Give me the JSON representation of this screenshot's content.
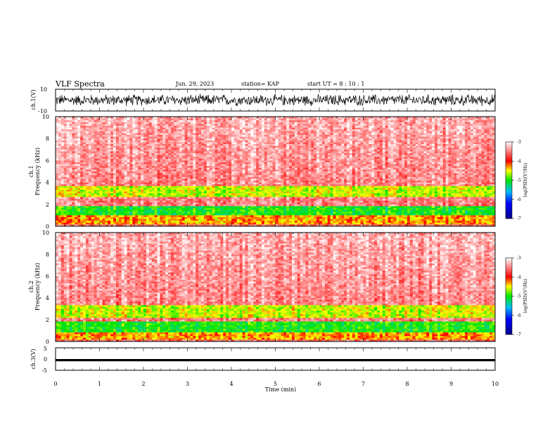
{
  "header": {
    "title": "VLF Spectra",
    "date": "Jun. 29, 2023",
    "station": "station= KAP",
    "start": "start  UT =   8 : 10 : 1"
  },
  "colors": {
    "spectrogram_scale": [
      "#00008b",
      "#0000ff",
      "#00c0ff",
      "#00ff00",
      "#ffff00",
      "#ff0000",
      "#ffffff"
    ]
  },
  "chart_data": [
    {
      "type": "line",
      "panel": "ch1-waveform",
      "ylabel": "ch.1(V)",
      "ylim": [
        -10,
        10
      ],
      "ytick_labels": [
        "10",
        "-10"
      ],
      "xlim": [
        0,
        10
      ],
      "description_values": {
        "waveform_range_V": [
          -6,
          6
        ]
      }
    },
    {
      "type": "heatmap",
      "panel": "ch1-spectrogram",
      "ylabel": "ch.1",
      "ylabel2": "Frequency  (kHz)",
      "ylim": [
        0,
        10
      ],
      "xlim": [
        0,
        10
      ],
      "ytick_labels": [
        "0",
        "2",
        "4",
        "6",
        "8",
        "10"
      ],
      "colorbar": {
        "label": "log(PSD)(V²/Hz)",
        "range": [
          -7,
          -3
        ],
        "tick_labels": [
          "-3",
          "-4",
          "-5",
          "-6",
          "-7"
        ]
      },
      "bands_kHz": [
        {
          "f_low": 2.6,
          "f_high": 3.7,
          "log_psd": -4.6
        },
        {
          "f_low": 1.0,
          "f_high": 1.9,
          "log_psd": -5.0
        },
        {
          "f_low": 0.2,
          "f_high": 1.0,
          "log_psd": -4.3
        }
      ]
    },
    {
      "type": "heatmap",
      "panel": "ch2-spectrogram",
      "ylabel": "ch.2",
      "ylabel2": "Frequency  (kHz)",
      "ylim": [
        0,
        10
      ],
      "xlim": [
        0,
        10
      ],
      "ytick_labels": [
        "0",
        "2",
        "4",
        "6",
        "8",
        "10"
      ],
      "colorbar": {
        "label": "log(PSD)(V²/Hz)",
        "range": [
          -7,
          -3
        ],
        "tick_labels": [
          "-3",
          "-4",
          "-5",
          "-6",
          "-7"
        ]
      },
      "bands_kHz": [
        {
          "f_low": 2.2,
          "f_high": 3.3,
          "log_psd": -4.6
        },
        {
          "f_low": 0.8,
          "f_high": 1.8,
          "log_psd": -5.0
        },
        {
          "f_low": 0.2,
          "f_high": 0.8,
          "log_psd": -4.3
        }
      ]
    },
    {
      "type": "line",
      "panel": "ch3-waveform",
      "ylabel": "ch.3(V)",
      "ylim": [
        -5,
        5
      ],
      "ytick_labels": [
        "5",
        "0",
        "-5"
      ],
      "xlim": [
        0,
        10
      ],
      "xlabel": "Time  (min)",
      "xtick_labels": [
        "0",
        "1",
        "2",
        "3",
        "4",
        "5",
        "6",
        "7",
        "8",
        "9",
        "10"
      ],
      "description_values": {
        "waveform_range_V": [
          -1,
          0
        ]
      }
    }
  ]
}
